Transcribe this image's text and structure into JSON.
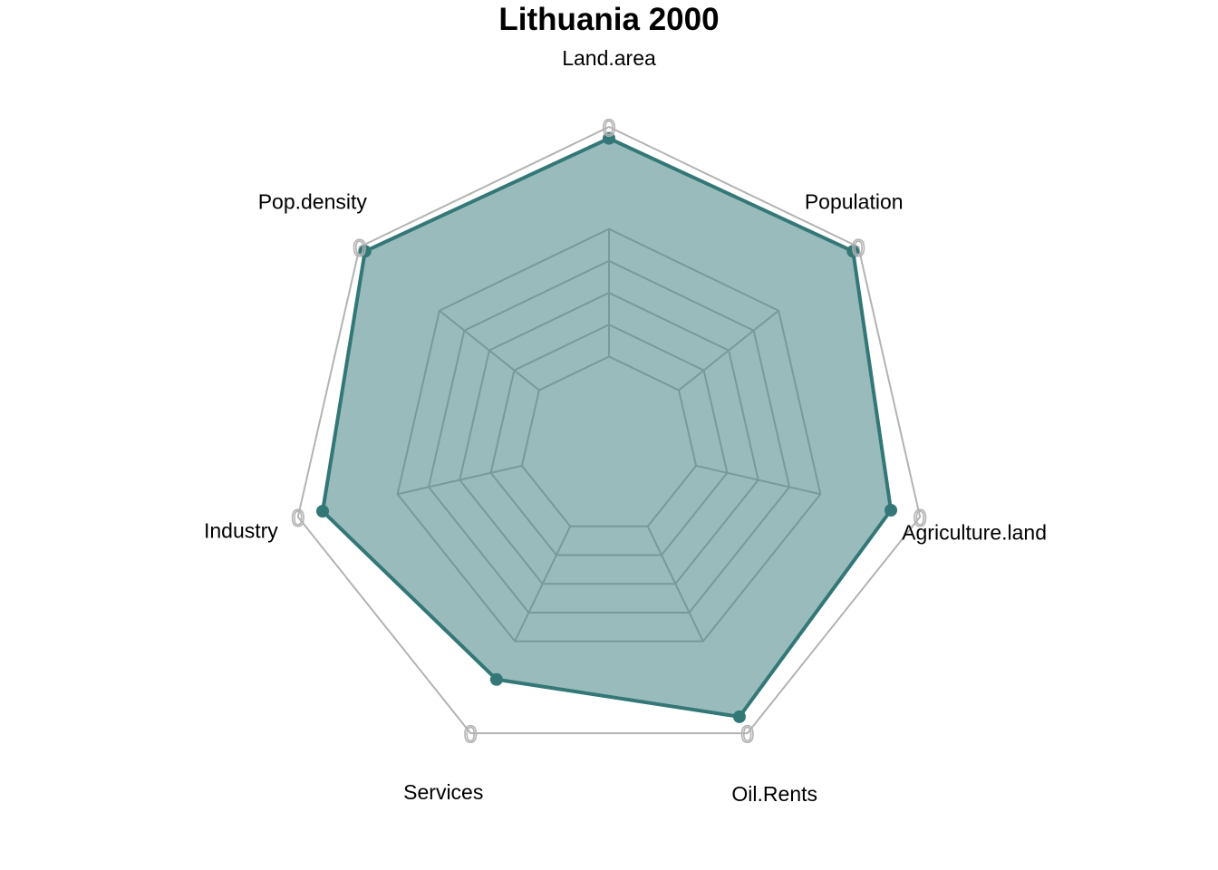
{
  "chart_data": {
    "type": "radar",
    "title": "Lithuania 2000",
    "axes": [
      "Land.area",
      "Population",
      "Agriculture.land",
      "Oil.Rents",
      "Services",
      "Industry",
      "Pop.density"
    ],
    "series": [
      {
        "values": [
          0.95,
          0.97,
          0.87,
          0.92,
          0.74,
          0.89,
          0.97
        ]
      }
    ],
    "range": [
      0,
      1
    ],
    "grid_levels": 5,
    "outer_tick_label": "0",
    "colors": {
      "series_line": "#337777",
      "series_fill": "#337777",
      "series_fill_opacity": 0.5,
      "grid_line": "#7a9a9a",
      "outer_ring": "#b3b3b3"
    }
  }
}
